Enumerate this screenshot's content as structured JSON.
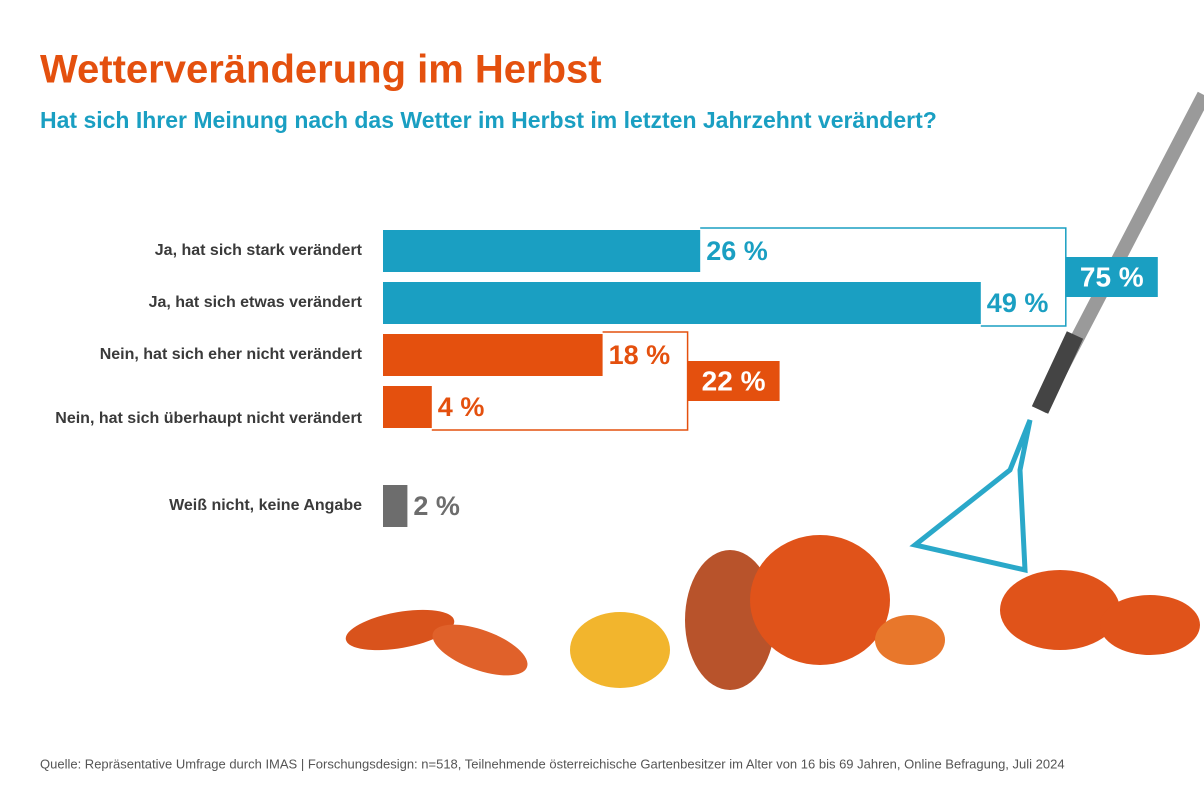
{
  "chart_data": {
    "type": "bar",
    "title": "Wetterveränderung im Herbst",
    "subtitle": "Hat sich Ihrer Meinung nach das Wetter im Herbst im letzten Jahrzehnt verändert?",
    "categories": [
      "Ja, hat sich stark verändert",
      "Ja, hat sich etwas verändert",
      "Nein, hat sich eher nicht verändert",
      "Nein, hat sich überhaupt nicht verändert",
      "Weiß nicht, keine Angabe"
    ],
    "values": [
      26,
      49,
      18,
      4,
      2
    ],
    "value_labels": [
      "26 %",
      "49 %",
      "18 %",
      "4 %",
      "2 %"
    ],
    "colors": [
      "#1a9fc2",
      "#1a9fc2",
      "#e4500e",
      "#e4500e",
      "#6d6d6d"
    ],
    "groups": [
      {
        "value": 75,
        "label": "75 %",
        "color": "#1a9fc2"
      },
      {
        "value": 22,
        "label": "22 %",
        "color": "#e4500e"
      }
    ],
    "source": "Quelle: Repräsentative Umfrage durch IMAS | Forschungsdesign: n=518, Teilnehmende österreichische Gartenbesitzer im Alter von 16 bis 69 Jahren, Online Befragung, Juli 2024"
  }
}
